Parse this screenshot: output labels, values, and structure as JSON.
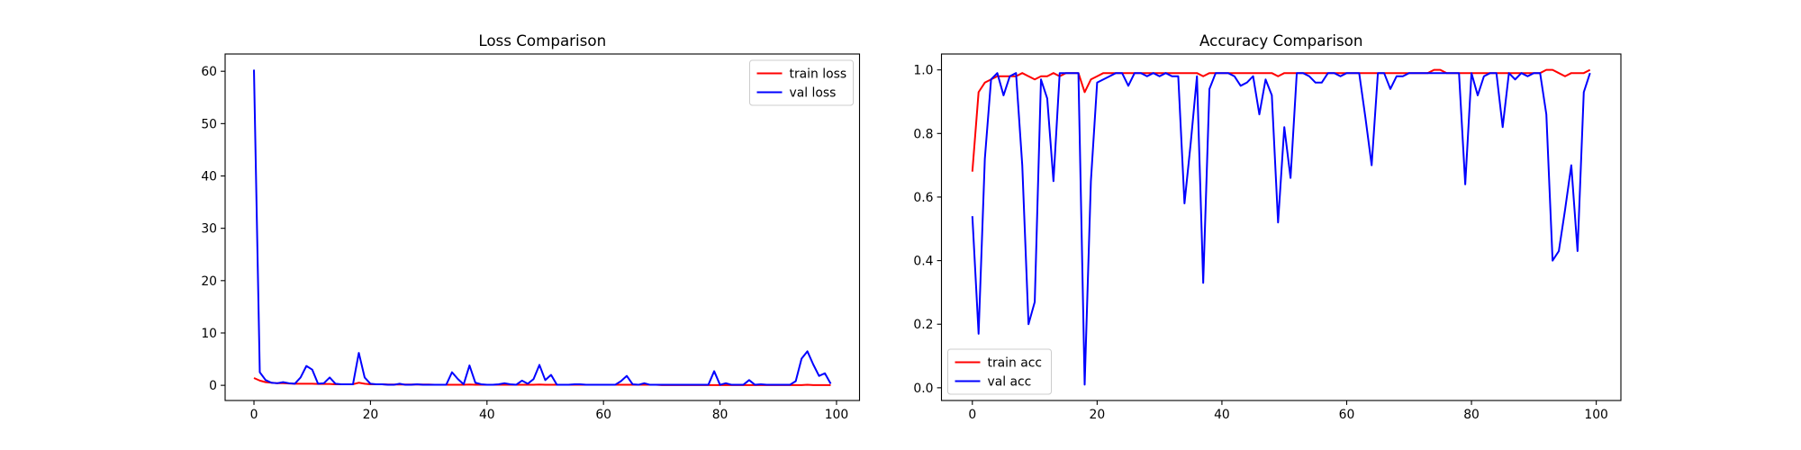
{
  "chart_data": [
    {
      "type": "line",
      "title": "Loss Comparison",
      "legend": "upper right",
      "x": [
        0,
        1,
        2,
        3,
        4,
        5,
        6,
        7,
        8,
        9,
        10,
        11,
        12,
        13,
        14,
        15,
        16,
        17,
        18,
        19,
        20,
        21,
        22,
        23,
        24,
        25,
        26,
        27,
        28,
        29,
        30,
        31,
        32,
        33,
        34,
        35,
        36,
        37,
        38,
        39,
        40,
        41,
        42,
        43,
        44,
        45,
        46,
        47,
        48,
        49,
        50,
        51,
        52,
        53,
        54,
        55,
        56,
        57,
        58,
        59,
        60,
        61,
        62,
        63,
        64,
        65,
        66,
        67,
        68,
        69,
        70,
        71,
        72,
        73,
        74,
        75,
        76,
        77,
        78,
        79,
        80,
        81,
        82,
        83,
        84,
        85,
        86,
        87,
        88,
        89,
        90,
        91,
        92,
        93,
        94,
        95,
        96,
        97,
        98,
        99
      ],
      "series": [
        {
          "name": "train loss",
          "color": "#ff0000",
          "values": [
            1.4,
            0.9,
            0.6,
            0.5,
            0.4,
            0.4,
            0.35,
            0.3,
            0.3,
            0.3,
            0.3,
            0.25,
            0.25,
            0.25,
            0.2,
            0.2,
            0.2,
            0.2,
            0.5,
            0.3,
            0.2,
            0.2,
            0.2,
            0.15,
            0.15,
            0.15,
            0.15,
            0.15,
            0.15,
            0.15,
            0.15,
            0.1,
            0.1,
            0.1,
            0.1,
            0.1,
            0.1,
            0.15,
            0.1,
            0.1,
            0.1,
            0.1,
            0.1,
            0.1,
            0.1,
            0.1,
            0.1,
            0.1,
            0.1,
            0.15,
            0.1,
            0.1,
            0.1,
            0.1,
            0.1,
            0.1,
            0.1,
            0.1,
            0.1,
            0.1,
            0.1,
            0.1,
            0.1,
            0.1,
            0.1,
            0.1,
            0.1,
            0.1,
            0.1,
            0.1,
            0.05,
            0.05,
            0.05,
            0.05,
            0.05,
            0.05,
            0.05,
            0.05,
            0.05,
            0.05,
            0.05,
            0.05,
            0.05,
            0.05,
            0.05,
            0.05,
            0.05,
            0.05,
            0.05,
            0.05,
            0.05,
            0.05,
            0.05,
            0.05,
            0.05,
            0.1,
            0.05,
            0.05,
            0.05,
            0.05
          ]
        },
        {
          "name": "val loss",
          "color": "#0000ff",
          "values": [
            60.3,
            2.5,
            1.0,
            0.5,
            0.4,
            0.6,
            0.4,
            0.3,
            1.5,
            3.7,
            3.0,
            0.3,
            0.4,
            1.5,
            0.3,
            0.2,
            0.2,
            0.2,
            6.2,
            1.5,
            0.3,
            0.2,
            0.2,
            0.1,
            0.1,
            0.3,
            0.1,
            0.1,
            0.2,
            0.1,
            0.1,
            0.1,
            0.1,
            0.1,
            2.5,
            1.2,
            0.2,
            3.8,
            0.5,
            0.2,
            0.1,
            0.1,
            0.2,
            0.4,
            0.2,
            0.1,
            0.9,
            0.3,
            1.2,
            3.9,
            1.0,
            2.0,
            0.1,
            0.1,
            0.1,
            0.2,
            0.2,
            0.1,
            0.1,
            0.1,
            0.1,
            0.1,
            0.1,
            0.8,
            1.8,
            0.2,
            0.1,
            0.4,
            0.1,
            0.1,
            0.1,
            0.1,
            0.1,
            0.1,
            0.1,
            0.1,
            0.1,
            0.1,
            0.1,
            2.7,
            0.1,
            0.4,
            0.1,
            0.1,
            0.1,
            1.0,
            0.1,
            0.2,
            0.1,
            0.1,
            0.1,
            0.1,
            0.1,
            0.8,
            5.1,
            6.5,
            4.0,
            1.8,
            2.3,
            0.3
          ]
        }
      ],
      "xlim": [
        -4.95,
        103.95
      ],
      "xticks": [
        0,
        20,
        40,
        60,
        80,
        100
      ],
      "ylim": [
        -2.9,
        63.3
      ],
      "yticks": [
        0,
        10,
        20,
        30,
        40,
        50,
        60
      ]
    },
    {
      "type": "line",
      "title": "Accuracy Comparison",
      "legend": "lower left",
      "x": [
        0,
        1,
        2,
        3,
        4,
        5,
        6,
        7,
        8,
        9,
        10,
        11,
        12,
        13,
        14,
        15,
        16,
        17,
        18,
        19,
        20,
        21,
        22,
        23,
        24,
        25,
        26,
        27,
        28,
        29,
        30,
        31,
        32,
        33,
        34,
        35,
        36,
        37,
        38,
        39,
        40,
        41,
        42,
        43,
        44,
        45,
        46,
        47,
        48,
        49,
        50,
        51,
        52,
        53,
        54,
        55,
        56,
        57,
        58,
        59,
        60,
        61,
        62,
        63,
        64,
        65,
        66,
        67,
        68,
        69,
        70,
        71,
        72,
        73,
        74,
        75,
        76,
        77,
        78,
        79,
        80,
        81,
        82,
        83,
        84,
        85,
        86,
        87,
        88,
        89,
        90,
        91,
        92,
        93,
        94,
        95,
        96,
        97,
        98,
        99
      ],
      "series": [
        {
          "name": "train acc",
          "color": "#ff0000",
          "values": [
            0.68,
            0.93,
            0.96,
            0.97,
            0.98,
            0.98,
            0.98,
            0.98,
            0.99,
            0.98,
            0.97,
            0.98,
            0.98,
            0.99,
            0.98,
            0.99,
            0.99,
            0.99,
            0.93,
            0.97,
            0.98,
            0.99,
            0.99,
            0.99,
            0.99,
            0.99,
            0.99,
            0.99,
            0.99,
            0.99,
            0.99,
            0.99,
            0.99,
            0.99,
            0.99,
            0.99,
            0.99,
            0.98,
            0.99,
            0.99,
            0.99,
            0.99,
            0.99,
            0.99,
            0.99,
            0.99,
            0.99,
            0.99,
            0.99,
            0.98,
            0.99,
            0.99,
            0.99,
            0.99,
            0.99,
            0.99,
            0.99,
            0.99,
            0.99,
            0.99,
            0.99,
            0.99,
            0.99,
            0.99,
            0.99,
            0.99,
            0.99,
            0.99,
            0.99,
            0.99,
            0.99,
            0.99,
            0.99,
            0.99,
            1.0,
            1.0,
            0.99,
            0.99,
            0.99,
            0.99,
            0.99,
            0.99,
            0.99,
            0.99,
            0.99,
            0.99,
            0.99,
            0.99,
            0.99,
            0.99,
            0.99,
            0.99,
            1.0,
            1.0,
            0.99,
            0.98,
            0.99,
            0.99,
            0.99,
            1.0
          ]
        },
        {
          "name": "val acc",
          "color": "#0000ff",
          "values": [
            0.54,
            0.17,
            0.72,
            0.97,
            0.99,
            0.92,
            0.98,
            0.99,
            0.7,
            0.2,
            0.27,
            0.97,
            0.91,
            0.65,
            0.99,
            0.99,
            0.99,
            0.99,
            0.01,
            0.65,
            0.96,
            0.97,
            0.98,
            0.99,
            0.99,
            0.95,
            0.99,
            0.99,
            0.98,
            0.99,
            0.98,
            0.99,
            0.98,
            0.98,
            0.58,
            0.77,
            0.98,
            0.33,
            0.94,
            0.99,
            0.99,
            0.99,
            0.98,
            0.95,
            0.96,
            0.98,
            0.86,
            0.97,
            0.92,
            0.52,
            0.82,
            0.66,
            0.99,
            0.99,
            0.98,
            0.96,
            0.96,
            0.99,
            0.99,
            0.98,
            0.99,
            0.99,
            0.99,
            0.85,
            0.7,
            0.99,
            0.99,
            0.94,
            0.98,
            0.98,
            0.99,
            0.99,
            0.99,
            0.99,
            0.99,
            0.99,
            0.99,
            0.99,
            0.99,
            0.64,
            0.99,
            0.92,
            0.98,
            0.99,
            0.99,
            0.82,
            0.99,
            0.97,
            0.99,
            0.98,
            0.99,
            0.99,
            0.86,
            0.4,
            0.43,
            0.56,
            0.7,
            0.43,
            0.93,
            0.99
          ]
        }
      ],
      "xlim": [
        -4.95,
        103.95
      ],
      "xticks": [
        0,
        20,
        40,
        60,
        80,
        100
      ],
      "ylim": [
        -0.04,
        1.05
      ],
      "yticks": [
        {
          "value": 0,
          "label": "0.0"
        },
        0.2,
        0.4,
        0.6,
        0.8,
        {
          "value": 1,
          "label": "1.0"
        }
      ]
    }
  ]
}
